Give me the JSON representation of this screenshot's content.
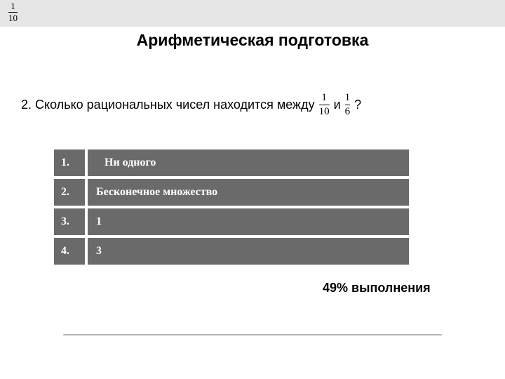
{
  "topband": {
    "fraction": {
      "num": "1",
      "den": "10"
    },
    "background_color": "#e6e6e6"
  },
  "title": "Арифметическая подготовка",
  "question": {
    "prefix": "2. Сколько рациональных чисел находится между",
    "frac1": {
      "num": "1",
      "den": "10"
    },
    "connector": "и",
    "frac2": {
      "num": "1",
      "den": "6"
    },
    "suffix": "?"
  },
  "answers": {
    "row_bg_color": "#6a6a6a",
    "border_color": "#ffffff",
    "text_color": "#ffffff",
    "items": [
      {
        "num": "1.",
        "text": "Ни одного"
      },
      {
        "num": "2.",
        "text": "Бесконечное множество"
      },
      {
        "num": "3.",
        "text": "1"
      },
      {
        "num": "4.",
        "text": "3"
      }
    ]
  },
  "completion": "49% выполнения",
  "rule_color": "#b5b5b5"
}
